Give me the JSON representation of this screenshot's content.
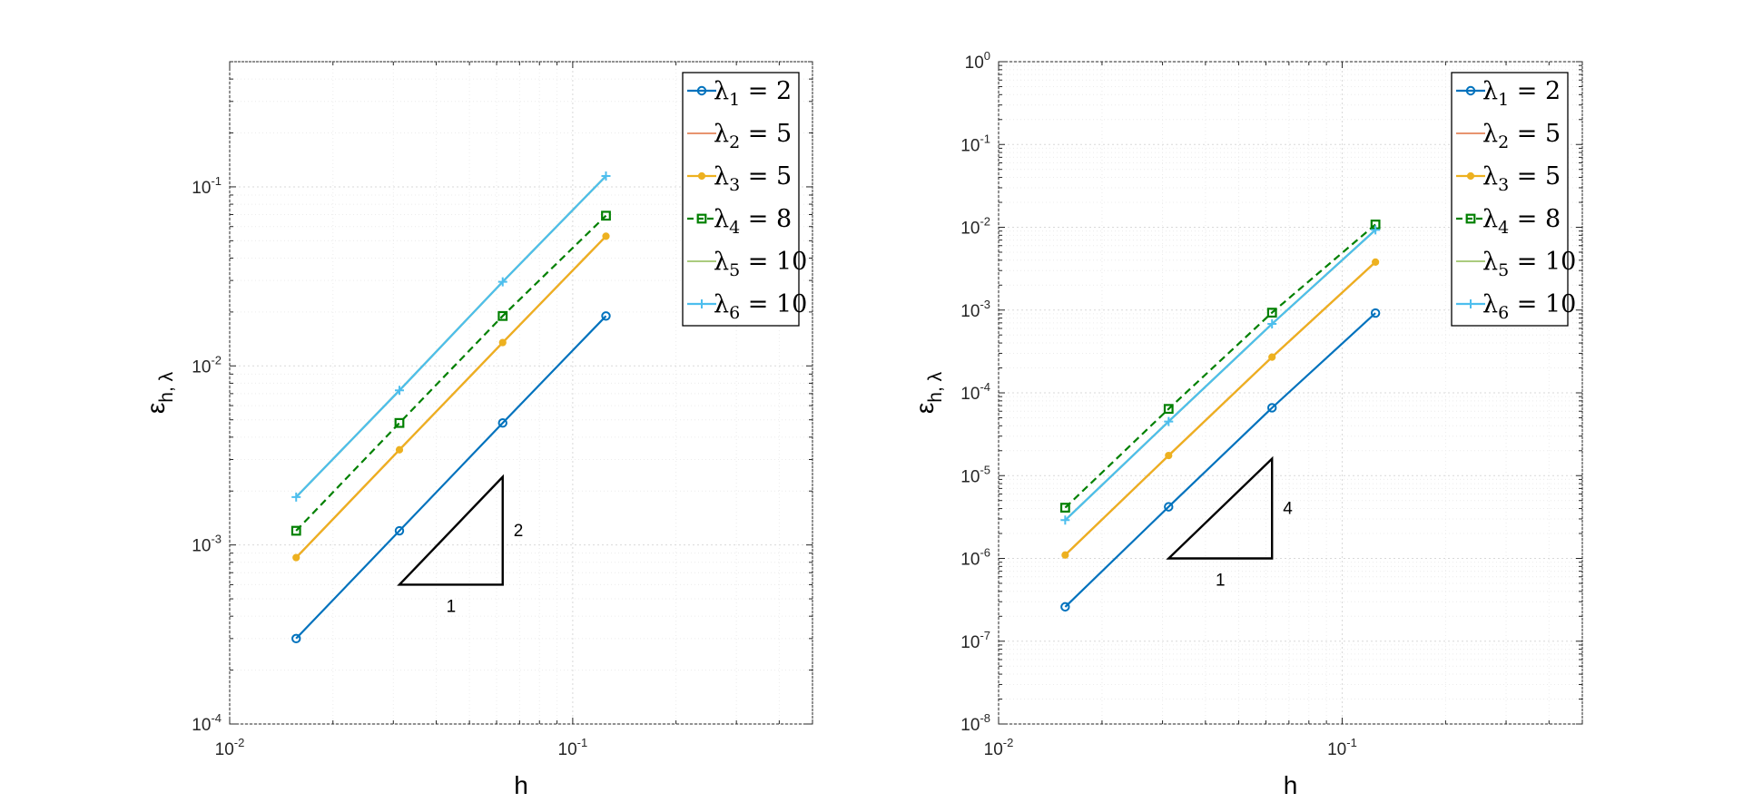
{
  "chart_data": [
    {
      "type": "line",
      "xlabel": "h",
      "ylabel": {
        "main": "ε",
        "sub": "h, λ"
      },
      "xscale": "log",
      "yscale": "log",
      "xlim": [
        0.01,
        0.5
      ],
      "ylim": [
        0.0001,
        0.5
      ],
      "grid": true,
      "legend_location": "top-right",
      "x_ticks": [
        {
          "value": 0.01,
          "base": "10",
          "exp": "-2"
        },
        {
          "value": 0.1,
          "base": "10",
          "exp": "-1"
        }
      ],
      "y_ticks": [
        {
          "value": 0.0001,
          "base": "10",
          "exp": "-4"
        },
        {
          "value": 0.001,
          "base": "10",
          "exp": "-3"
        },
        {
          "value": 0.01,
          "base": "10",
          "exp": "-2"
        },
        {
          "value": 0.1,
          "base": "10",
          "exp": "-1"
        }
      ],
      "x": [
        0.015625,
        0.03125,
        0.0625,
        0.125
      ],
      "series": [
        {
          "symbol": "λ",
          "sub": "1",
          "value_text": " = 2",
          "color": "#0072BD",
          "marker": "circle",
          "dash": false,
          "values": [
            0.0003,
            0.0012,
            0.0048,
            0.019
          ]
        },
        {
          "symbol": "λ",
          "sub": "2",
          "value_text": " = 5",
          "color": "#D95319",
          "marker": "none",
          "dash": false,
          "values": [
            0.00085,
            0.0034,
            0.0135,
            0.053
          ]
        },
        {
          "symbol": "λ",
          "sub": "3",
          "value_text": " = 5",
          "color": "#EDB120",
          "marker": "dot",
          "dash": false,
          "values": [
            0.00085,
            0.0034,
            0.0135,
            0.053
          ]
        },
        {
          "symbol": "λ",
          "sub": "4",
          "value_text": " = 8",
          "color": "#008000",
          "marker": "square",
          "dash": true,
          "values": [
            0.0012,
            0.0048,
            0.019,
            0.069
          ]
        },
        {
          "symbol": "λ",
          "sub": "5",
          "value_text": " = 10",
          "color": "#77AC30",
          "marker": "none",
          "dash": false,
          "values": [
            0.00185,
            0.0073,
            0.0295,
            0.115
          ]
        },
        {
          "symbol": "λ",
          "sub": "6",
          "value_text": " = 10",
          "color": "#4DBEEE",
          "marker": "plus",
          "dash": false,
          "values": [
            0.00185,
            0.0073,
            0.0295,
            0.115
          ]
        }
      ],
      "slope_triangle": {
        "run_label": "1",
        "rise_label": "2",
        "x": [
          0.03125,
          0.0625
        ],
        "y_bottom": 0.0006,
        "rise": 2
      }
    },
    {
      "type": "line",
      "xlabel": "h",
      "ylabel": {
        "main": "ε",
        "sub": "h, λ"
      },
      "xscale": "log",
      "yscale": "log",
      "xlim": [
        0.01,
        0.5
      ],
      "ylim": [
        1e-08,
        1
      ],
      "grid": true,
      "legend_location": "top-right",
      "x_ticks": [
        {
          "value": 0.01,
          "base": "10",
          "exp": "-2"
        },
        {
          "value": 0.1,
          "base": "10",
          "exp": "-1"
        }
      ],
      "y_ticks": [
        {
          "value": 1e-08,
          "base": "10",
          "exp": "-8"
        },
        {
          "value": 1e-07,
          "base": "10",
          "exp": "-7"
        },
        {
          "value": 1e-06,
          "base": "10",
          "exp": "-6"
        },
        {
          "value": 1e-05,
          "base": "10",
          "exp": "-5"
        },
        {
          "value": 0.0001,
          "base": "10",
          "exp": "-4"
        },
        {
          "value": 0.001,
          "base": "10",
          "exp": "-3"
        },
        {
          "value": 0.01,
          "base": "10",
          "exp": "-2"
        },
        {
          "value": 0.1,
          "base": "10",
          "exp": "-1"
        },
        {
          "value": 1,
          "base": "10",
          "exp": "0"
        }
      ],
      "x": [
        0.015625,
        0.03125,
        0.0625,
        0.125
      ],
      "series": [
        {
          "symbol": "λ",
          "sub": "1",
          "value_text": " = 2",
          "color": "#0072BD",
          "marker": "circle",
          "dash": false,
          "values": [
            2.6e-07,
            4.2e-06,
            6.6e-05,
            0.00092
          ]
        },
        {
          "symbol": "λ",
          "sub": "2",
          "value_text": " = 5",
          "color": "#D95319",
          "marker": "none",
          "dash": false,
          "values": [
            1.1e-06,
            1.75e-05,
            0.00027,
            0.0038
          ]
        },
        {
          "symbol": "λ",
          "sub": "3",
          "value_text": " = 5",
          "color": "#EDB120",
          "marker": "dot",
          "dash": false,
          "values": [
            1.1e-06,
            1.75e-05,
            0.00027,
            0.0038
          ]
        },
        {
          "symbol": "λ",
          "sub": "4",
          "value_text": " = 8",
          "color": "#008000",
          "marker": "square",
          "dash": true,
          "values": [
            4.1e-06,
            6.4e-05,
            0.00093,
            0.0108
          ]
        },
        {
          "symbol": "λ",
          "sub": "5",
          "value_text": " = 10",
          "color": "#77AC30",
          "marker": "none",
          "dash": false,
          "values": [
            2.9e-06,
            4.5e-05,
            0.00068,
            0.0093
          ]
        },
        {
          "symbol": "λ",
          "sub": "6",
          "value_text": " = 10",
          "color": "#4DBEEE",
          "marker": "plus",
          "dash": false,
          "values": [
            2.9e-06,
            4.5e-05,
            0.00068,
            0.0093
          ]
        }
      ],
      "slope_triangle": {
        "run_label": "1",
        "rise_label": "4",
        "x": [
          0.03125,
          0.0625
        ],
        "y_bottom": 1e-06,
        "rise": 4
      }
    }
  ]
}
